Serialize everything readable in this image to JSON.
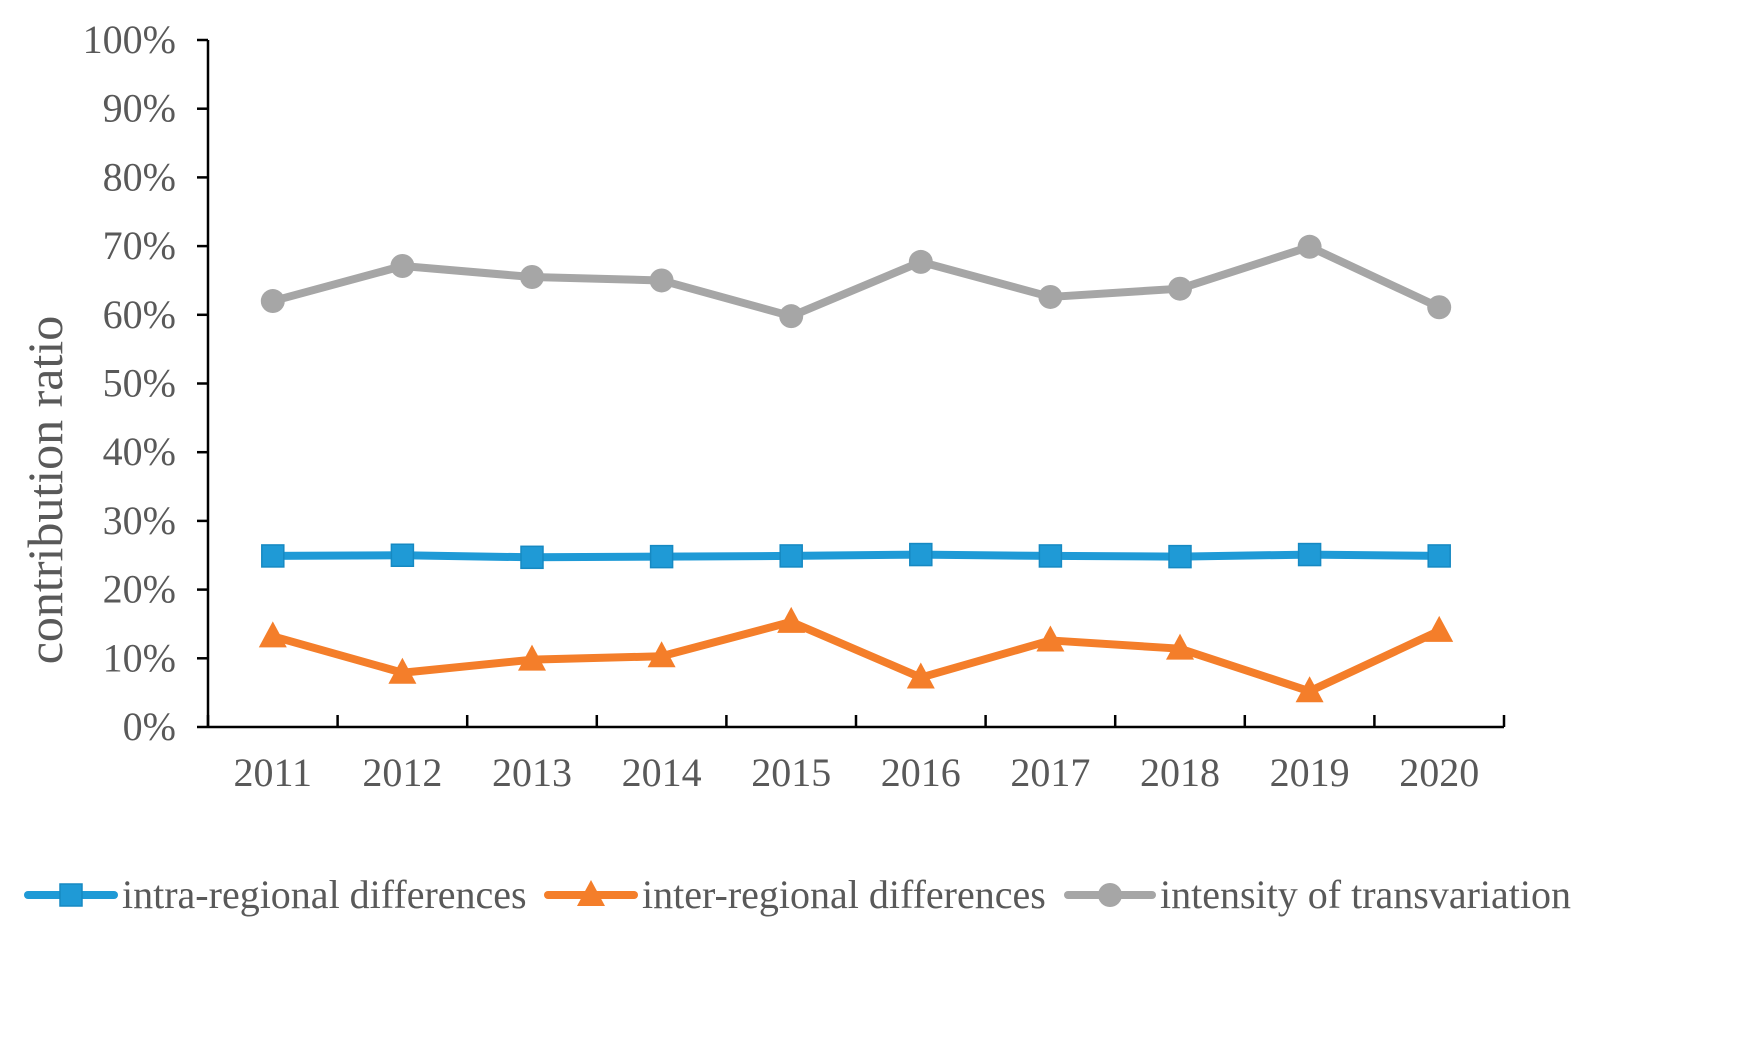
{
  "chart_data": {
    "type": "line",
    "title": "",
    "xlabel": "",
    "ylabel": "contribution ratio",
    "ylim": [
      0,
      100
    ],
    "y_ticks": [
      0,
      10,
      20,
      30,
      40,
      50,
      60,
      70,
      80,
      90,
      100
    ],
    "y_tick_labels": [
      "0%",
      "10%",
      "20%",
      "30%",
      "40%",
      "50%",
      "60%",
      "70%",
      "80%",
      "90%",
      "100%"
    ],
    "categories": [
      "2011",
      "2012",
      "2013",
      "2014",
      "2015",
      "2016",
      "2017",
      "2018",
      "2019",
      "2020"
    ],
    "grid": false,
    "legend_position": "bottom",
    "series": [
      {
        "name": "intra-regional differences",
        "color": "#1F9AD6",
        "marker": "square",
        "values": [
          24.9,
          25.0,
          24.7,
          24.8,
          24.9,
          25.1,
          24.9,
          24.8,
          25.1,
          24.9
        ]
      },
      {
        "name": "inter-regional differences",
        "color": "#F47E2A",
        "marker": "triangle",
        "values": [
          13.2,
          7.9,
          9.8,
          10.3,
          15.3,
          7.2,
          12.6,
          11.4,
          5.2,
          14.0
        ]
      },
      {
        "name": "intensity of transvariation",
        "color": "#A6A6A6",
        "marker": "circle",
        "values": [
          62.0,
          67.1,
          65.5,
          65.0,
          59.8,
          67.7,
          62.6,
          63.8,
          69.9,
          61.1
        ]
      }
    ]
  }
}
